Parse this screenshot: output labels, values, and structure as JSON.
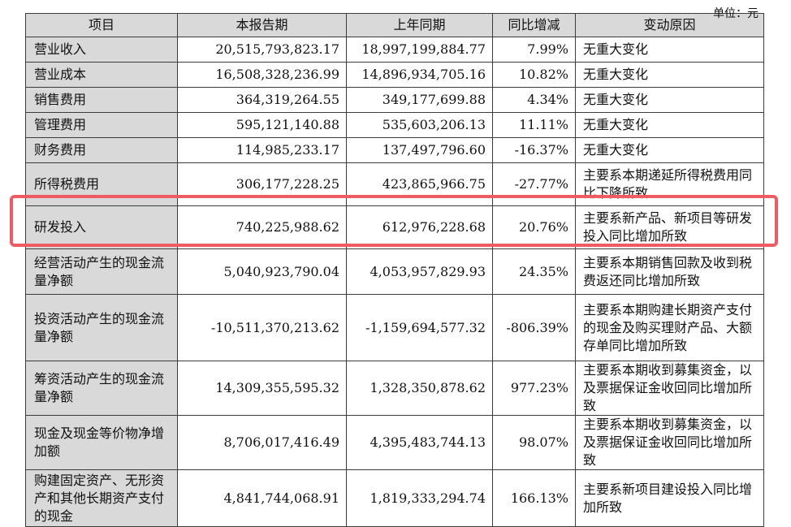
{
  "corner_text": "单位：元",
  "columns": [
    "项目",
    "本报告期",
    "上年同期",
    "同比增减",
    "变动原因"
  ],
  "rows": [
    {
      "item": "营业收入",
      "current": "20,515,793,823.17",
      "prior": "18,997,199,884.77",
      "change": "7.99%",
      "reason": "无重大变化"
    },
    {
      "item": "营业成本",
      "current": "16,508,328,236.99",
      "prior": "14,896,934,705.16",
      "change": "10.82%",
      "reason": "无重大变化"
    },
    {
      "item": "销售费用",
      "current": "364,319,264.55",
      "prior": "349,177,699.88",
      "change": "4.34%",
      "reason": "无重大变化"
    },
    {
      "item": "管理费用",
      "current": "595,121,140.88",
      "prior": "535,603,206.13",
      "change": "11.11%",
      "reason": "无重大变化"
    },
    {
      "item": "财务费用",
      "current": "114,985,233.17",
      "prior": "137,497,796.60",
      "change": "-16.37%",
      "reason": "无重大变化"
    },
    {
      "item": "所得税费用",
      "current": "306,177,228.25",
      "prior": "423,865,966.75",
      "change": "-27.77%",
      "reason": "主要系本期递延所得税费用同比下降所致"
    },
    {
      "item": "研发投入",
      "current": "740,225,988.62",
      "prior": "612,976,228.68",
      "change": "20.76%",
      "reason": "主要系新产品、新项目等研发投入同比增加所致"
    },
    {
      "item": "经营活动产生的现金流量净额",
      "current": "5,040,923,790.04",
      "prior": "4,053,957,829.93",
      "change": "24.35%",
      "reason": "主要系本期销售回款及收到税费返还同比增加所致"
    },
    {
      "item": "投资活动产生的现金流量净额",
      "current": "-10,511,370,213.62",
      "prior": "-1,159,694,577.32",
      "change": "-806.39%",
      "reason": "主要系本期购建长期资产支付的现金及购买理财产品、大额存单同比增加所致"
    },
    {
      "item": "筹资活动产生的现金流量净额",
      "current": "14,309,355,595.32",
      "prior": "1,328,350,878.62",
      "change": "977.23%",
      "reason": "主要系本期收到募集资金，以及票据保证金收回同比增加所致"
    },
    {
      "item": "现金及现金等价物净增加额",
      "current": "8,706,017,416.49",
      "prior": "4,395,483,744.13",
      "change": "98.07%",
      "reason": "主要系本期收到募集资金，以及票据保证金收回同比增加所致"
    },
    {
      "item": "购建固定资产、无形资产和其他长期资产支付的现金",
      "current": "4,841,744,068.91",
      "prior": "1,819,333,294.74",
      "change": "166.13%",
      "reason": "主要系新项目建设投入同比增加所致"
    }
  ]
}
